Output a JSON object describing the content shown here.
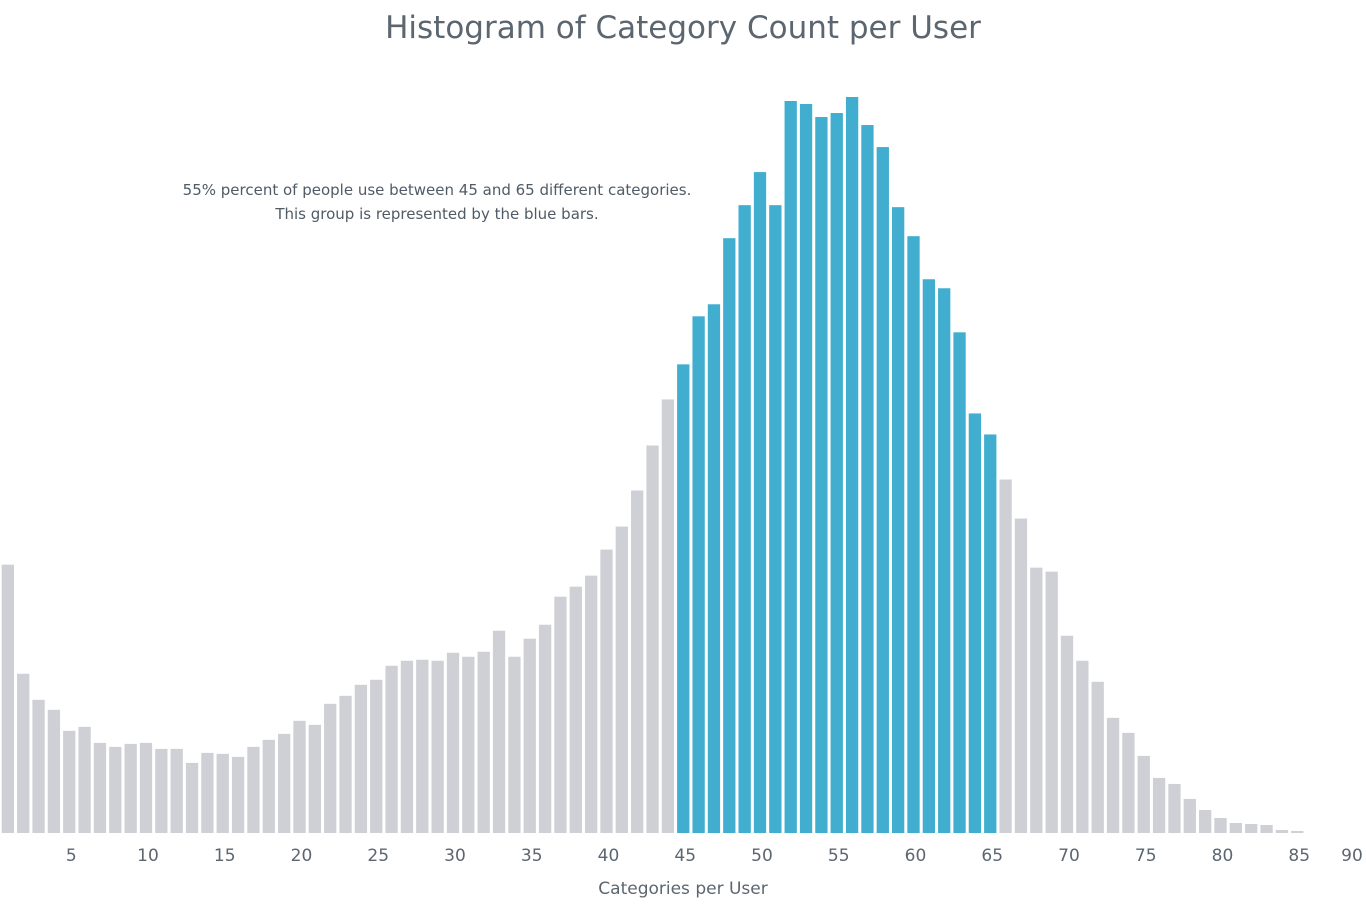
{
  "chart_data": {
    "type": "bar",
    "title": "Histogram of Category Count per User",
    "xlabel": "Categories per User",
    "ylabel": "",
    "annotation": [
      "55% percent of people use between 45 and 65 different categories.",
      "This group is represented by the blue bars."
    ],
    "x_ticks": [
      5,
      10,
      15,
      20,
      25,
      30,
      35,
      40,
      45,
      50,
      55,
      60,
      65,
      70,
      75,
      80,
      85,
      90
    ],
    "xlim": [
      0,
      90
    ],
    "ylim": [
      0,
      740
    ],
    "highlight_range": [
      45,
      65
    ],
    "categories": [
      1,
      2,
      3,
      4,
      5,
      6,
      7,
      8,
      9,
      10,
      11,
      12,
      13,
      14,
      15,
      16,
      17,
      18,
      19,
      20,
      21,
      22,
      23,
      24,
      25,
      26,
      27,
      28,
      29,
      30,
      31,
      32,
      33,
      34,
      35,
      36,
      37,
      38,
      39,
      40,
      41,
      42,
      43,
      44,
      45,
      46,
      47,
      48,
      49,
      50,
      51,
      52,
      53,
      54,
      55,
      56,
      57,
      58,
      59,
      60,
      61,
      62,
      63,
      64,
      65,
      66,
      67,
      68,
      69,
      70,
      71,
      72,
      73,
      74,
      75,
      76,
      77,
      78,
      79,
      80,
      81,
      82,
      83,
      84,
      85
    ],
    "values": [
      268,
      159,
      133,
      123,
      102,
      106,
      90,
      86,
      89,
      90,
      84,
      84,
      70,
      80,
      79,
      76,
      86,
      93,
      99,
      112,
      108,
      129,
      137,
      148,
      153,
      167,
      172,
      173,
      172,
      180,
      176,
      181,
      202,
      176,
      194,
      208,
      236,
      246,
      257,
      283,
      306,
      342,
      387,
      433,
      468,
      516,
      528,
      594,
      627,
      660,
      627,
      731,
      728,
      715,
      719,
      735,
      707,
      685,
      625,
      596,
      553,
      544,
      500,
      419,
      398,
      353,
      314,
      265,
      261,
      197,
      172,
      151,
      115,
      100,
      77,
      55,
      49,
      34,
      23,
      15,
      10,
      9,
      8,
      3,
      2
    ],
    "colors": {
      "default_bar": "#cfd0d6",
      "highlight_bar": "#41aecf",
      "text": "#5b6670"
    }
  }
}
